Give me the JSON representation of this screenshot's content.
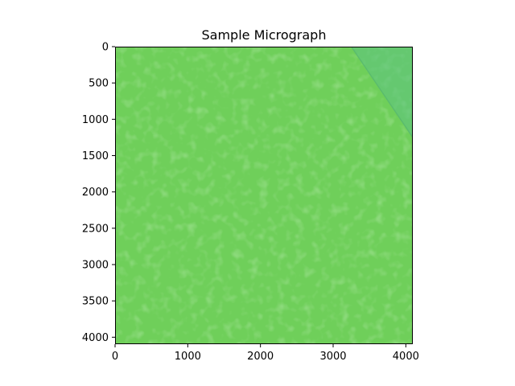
{
  "chart_data": {
    "type": "heatmap",
    "title": "Sample Micrograph",
    "xlabel": "",
    "ylabel": "",
    "xlim": [
      0,
      4096
    ],
    "ylim": [
      4096,
      0
    ],
    "x_ticks": [
      0,
      1000,
      2000,
      3000,
      4000
    ],
    "y_ticks": [
      0,
      500,
      1000,
      1500,
      2000,
      2500,
      3000,
      3500,
      4000
    ],
    "x_tick_labels": [
      "0",
      "1000",
      "2000",
      "3000",
      "4000"
    ],
    "y_tick_labels": [
      "0",
      "500",
      "1000",
      "1500",
      "2000",
      "2500",
      "3000",
      "3500",
      "4000"
    ],
    "grid": false,
    "colormap": "viridis",
    "fill_color": "#6fcf5a",
    "features": [
      {
        "kind": "edge",
        "from": [
          3250,
          0
        ],
        "to": [
          4096,
          1250
        ],
        "color": "#5cc383"
      }
    ]
  }
}
